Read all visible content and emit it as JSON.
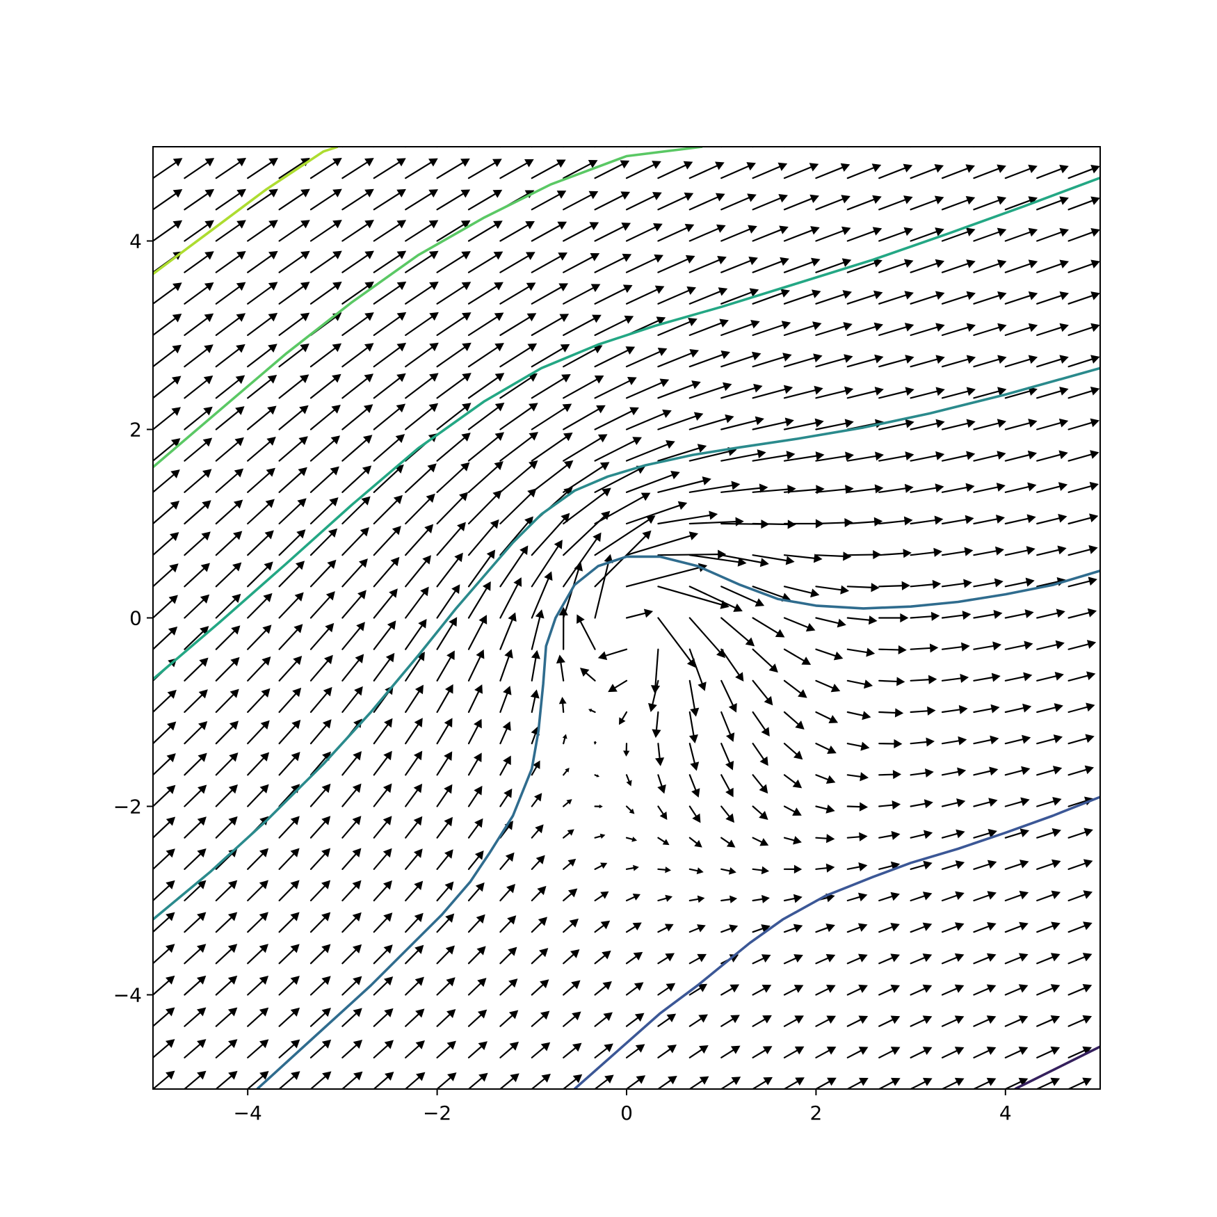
{
  "chart_data": {
    "type": "quiver_contour",
    "title": "",
    "xlabel": "",
    "ylabel": "",
    "xlim": [
      -5,
      5
    ],
    "ylim": [
      -5,
      5
    ],
    "grid": false,
    "x_ticks": [
      -4,
      -2,
      0,
      2,
      4
    ],
    "y_ticks": [
      -4,
      -2,
      0,
      2,
      4
    ],
    "x_tick_labels": [
      "−4",
      "−2",
      "0",
      "2",
      "4"
    ],
    "y_tick_labels": [
      "−4",
      "−2",
      "0",
      "2",
      "4"
    ],
    "quiver": {
      "grid_range": [
        -5,
        5
      ],
      "grid_points": 31,
      "uniform_flow_angle_deg": 30,
      "vortex_center": [
        0.0,
        0.0
      ],
      "vortex_rotation": "clockwise",
      "color": "#000000"
    },
    "contours": [
      {
        "color": "#35205d",
        "points": [
          [
            4.1,
            -5.0
          ],
          [
            5.0,
            -4.55
          ]
        ]
      },
      {
        "color": "#3b5796",
        "points": [
          [
            -0.55,
            -5.0
          ],
          [
            -0.1,
            -4.6
          ],
          [
            0.35,
            -4.2
          ],
          [
            0.75,
            -3.9
          ],
          [
            1.3,
            -3.45
          ],
          [
            1.65,
            -3.2
          ],
          [
            2.1,
            -2.95
          ],
          [
            2.6,
            -2.75
          ],
          [
            3.0,
            -2.6
          ],
          [
            3.5,
            -2.45
          ],
          [
            4.0,
            -2.28
          ],
          [
            4.5,
            -2.1
          ],
          [
            5.0,
            -1.9
          ]
        ]
      },
      {
        "color": "#2f6c8e",
        "points": [
          [
            -3.9,
            -5.0
          ],
          [
            -3.3,
            -4.45
          ],
          [
            -2.7,
            -3.9
          ],
          [
            -2.25,
            -3.45
          ],
          [
            -1.95,
            -3.15
          ],
          [
            -1.65,
            -2.8
          ],
          [
            -1.45,
            -2.5
          ],
          [
            -1.2,
            -2.1
          ],
          [
            -1.0,
            -1.6
          ],
          [
            -0.93,
            -1.2
          ],
          [
            -0.88,
            -0.7
          ],
          [
            -0.85,
            -0.3
          ],
          [
            -0.75,
            0.0
          ],
          [
            -0.55,
            0.35
          ],
          [
            -0.3,
            0.55
          ],
          [
            0.0,
            0.65
          ],
          [
            0.35,
            0.65
          ],
          [
            0.75,
            0.55
          ],
          [
            1.2,
            0.35
          ],
          [
            1.6,
            0.2
          ],
          [
            2.0,
            0.13
          ],
          [
            2.5,
            0.1
          ],
          [
            3.0,
            0.12
          ],
          [
            3.5,
            0.17
          ],
          [
            4.0,
            0.25
          ],
          [
            4.5,
            0.35
          ],
          [
            5.0,
            0.5
          ]
        ]
      },
      {
        "color": "#2a8a8c",
        "points": [
          [
            -5.0,
            -3.2
          ],
          [
            -4.4,
            -2.7
          ],
          [
            -3.8,
            -2.15
          ],
          [
            -3.2,
            -1.55
          ],
          [
            -2.7,
            -1.0
          ],
          [
            -2.2,
            -0.4
          ],
          [
            -1.8,
            0.1
          ],
          [
            -1.5,
            0.45
          ],
          [
            -1.2,
            0.8
          ],
          [
            -0.9,
            1.1
          ],
          [
            -0.55,
            1.35
          ],
          [
            -0.2,
            1.5
          ],
          [
            0.2,
            1.62
          ],
          [
            0.7,
            1.73
          ],
          [
            1.2,
            1.81
          ],
          [
            1.8,
            1.9
          ],
          [
            2.5,
            2.02
          ],
          [
            3.2,
            2.17
          ],
          [
            4.0,
            2.37
          ],
          [
            5.0,
            2.65
          ]
        ]
      },
      {
        "color": "#23a784",
        "points": [
          [
            -5.0,
            -0.65
          ],
          [
            -4.3,
            -0.05
          ],
          [
            -3.6,
            0.57
          ],
          [
            -2.9,
            1.2
          ],
          [
            -2.2,
            1.8
          ],
          [
            -1.5,
            2.3
          ],
          [
            -0.9,
            2.65
          ],
          [
            -0.3,
            2.9
          ],
          [
            0.3,
            3.1
          ],
          [
            1.0,
            3.3
          ],
          [
            1.8,
            3.55
          ],
          [
            2.6,
            3.8
          ],
          [
            3.4,
            4.08
          ],
          [
            4.2,
            4.37
          ],
          [
            5.0,
            4.67
          ]
        ]
      },
      {
        "color": "#5ac864",
        "points": [
          [
            -5.0,
            1.6
          ],
          [
            -4.3,
            2.2
          ],
          [
            -3.6,
            2.8
          ],
          [
            -2.9,
            3.35
          ],
          [
            -2.2,
            3.85
          ],
          [
            -1.5,
            4.25
          ],
          [
            -0.8,
            4.6
          ],
          [
            0.0,
            4.9
          ],
          [
            0.8,
            5.0
          ]
        ]
      },
      {
        "color": "#addc30",
        "points": [
          [
            -5.0,
            3.65
          ],
          [
            -4.4,
            4.1
          ],
          [
            -3.8,
            4.55
          ],
          [
            -3.2,
            4.95
          ],
          [
            -3.05,
            5.0
          ]
        ]
      }
    ]
  }
}
